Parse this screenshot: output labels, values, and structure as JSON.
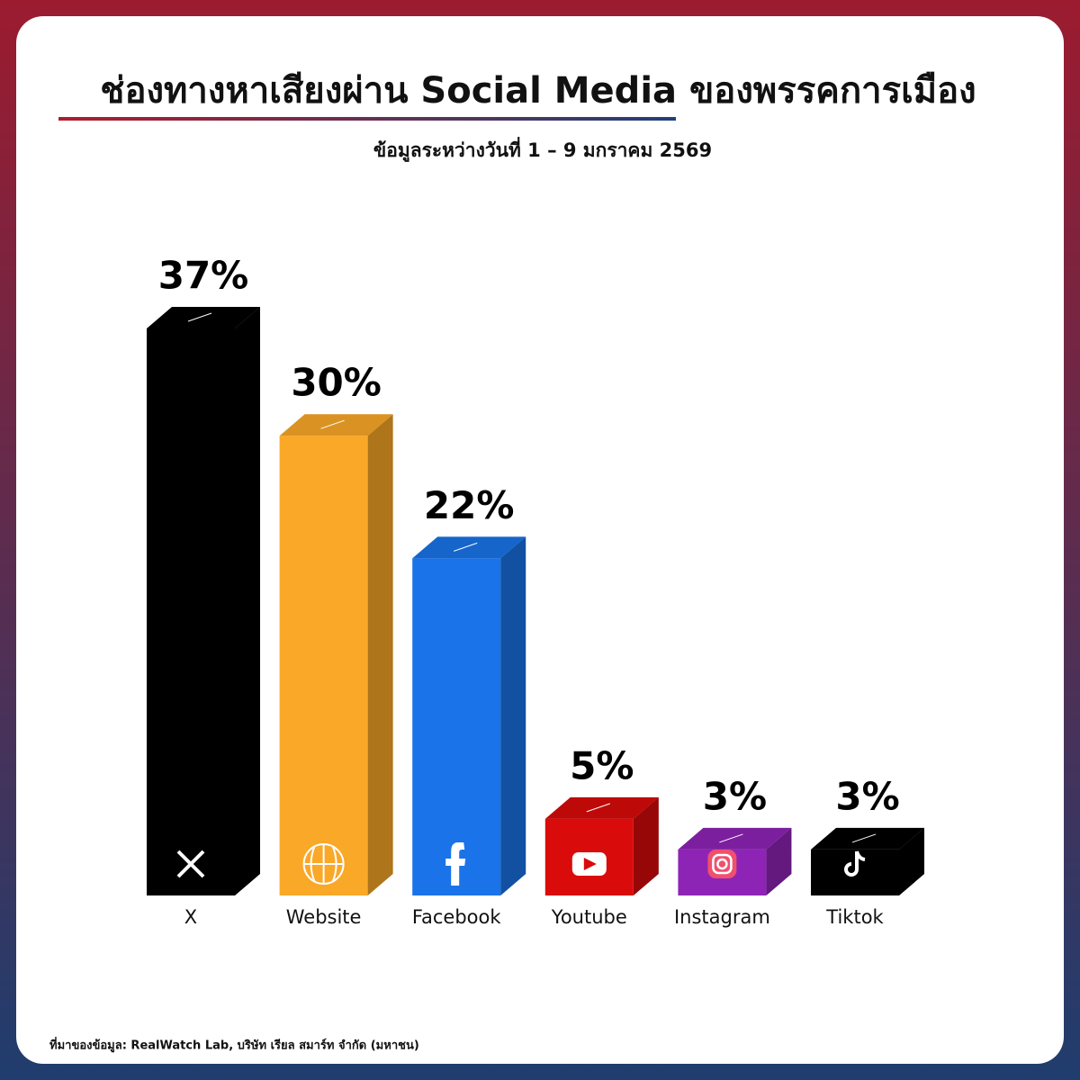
{
  "chart_data": {
    "type": "bar3d",
    "title": "ช่องทางหาเสียงผ่าน Social Media ของพรรคการเมือง",
    "subtitle": "ข้อมูลระหว่างวันที่ 1 – 9 มกราคม 2569",
    "categories": [
      "X",
      "Website",
      "Facebook",
      "Youtube",
      "Instagram",
      "Tiktok"
    ],
    "values": [
      37,
      30,
      22,
      5,
      3,
      3
    ],
    "value_labels": [
      "37%",
      "30%",
      "22%",
      "5%",
      "3%",
      "3%"
    ],
    "colors": [
      "#000000",
      "#f9a828",
      "#1a73e8",
      "#d90b0b",
      "#8e24b5",
      "#000000"
    ],
    "source": "ที่มาของข้อมูล: RealWatch Lab, บริษัท เรียล สมาร์ท จำกัด (มหาชน)"
  }
}
